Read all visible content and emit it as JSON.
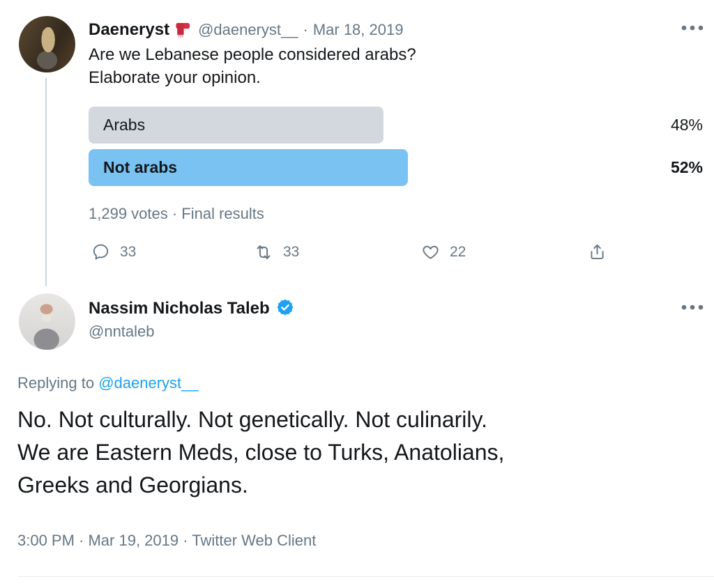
{
  "colors": {
    "text": "#14171A",
    "muted": "#657786",
    "link_blue": "#1DA1F2",
    "poll_bar_gray": "#D2D8DD",
    "poll_bar_blue": "#79C2F2",
    "thread_line": "#CCD6DD",
    "divider": "#E6ECF0"
  },
  "icons": {
    "scarf_emoji": "red-scarf",
    "more": "three-dots-horizontal",
    "reply": "speech-bubble-outline",
    "retweet": "cycle-arrows",
    "like": "heart-outline",
    "share": "arrow-up-from-tray",
    "verified": "blue-scalloped-check"
  },
  "tweet1": {
    "name": "Daeneryst",
    "handle": "@daeneryst__",
    "sep": "·",
    "date": "Mar 18, 2019",
    "text": "Are we Lebanese people considered arabs?\nElaborate your opinion.",
    "poll": {
      "options": [
        {
          "label": "Arabs",
          "percent": "48%",
          "value": 48,
          "winner": false
        },
        {
          "label": "Not arabs",
          "percent": "52%",
          "value": 52,
          "winner": true
        }
      ],
      "summary": "1,299 votes · Final results"
    },
    "actions": {
      "replies": "33",
      "retweets": "33",
      "likes": "22"
    }
  },
  "tweet2": {
    "name": "Nassim Nicholas Taleb",
    "handle": "@nntaleb",
    "replying_label": "Replying to",
    "replying_handle": "@daeneryst__",
    "text": "No. Not culturally. Not genetically. Not culinarily.\nWe are Eastern Meds, close to Turks, Anatolians,\nGreeks and Georgians.",
    "timestamp": "3:00 PM · Mar 19, 2019 · Twitter Web Client"
  }
}
